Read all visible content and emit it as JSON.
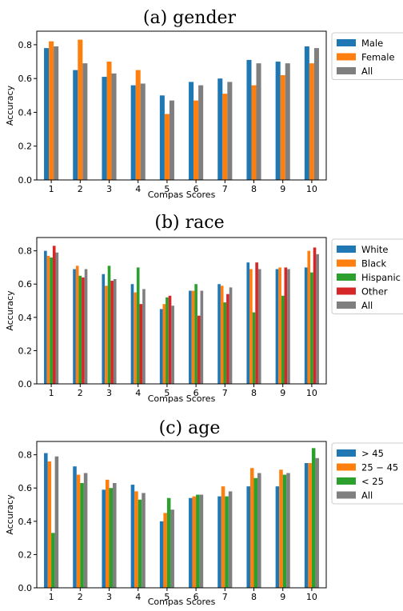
{
  "chart_data": [
    {
      "type": "bar",
      "title": "(a) gender",
      "xlabel": "Compas Scores",
      "ylabel": "Accuracy",
      "categories": [
        "1",
        "2",
        "3",
        "4",
        "5",
        "6",
        "7",
        "8",
        "9",
        "10"
      ],
      "ylim": [
        0,
        0.88
      ],
      "yticks": [
        "0.0",
        "0.2",
        "0.4",
        "0.6",
        "0.8"
      ],
      "legend_position": "right",
      "series": [
        {
          "name": "Male",
          "color": "#1f77b4",
          "values": [
            0.78,
            0.65,
            0.61,
            0.56,
            0.5,
            0.58,
            0.6,
            0.71,
            0.7,
            0.79
          ]
        },
        {
          "name": "Female",
          "color": "#ff7f0e",
          "values": [
            0.82,
            0.83,
            0.7,
            0.65,
            0.39,
            0.47,
            0.51,
            0.56,
            0.62,
            0.69
          ]
        },
        {
          "name": "All",
          "color": "#7f7f7f",
          "values": [
            0.79,
            0.69,
            0.63,
            0.57,
            0.47,
            0.56,
            0.58,
            0.69,
            0.69,
            0.78
          ]
        }
      ]
    },
    {
      "type": "bar",
      "title": "(b) race",
      "xlabel": "Compas Scores",
      "ylabel": "Accuracy",
      "categories": [
        "1",
        "2",
        "3",
        "4",
        "5",
        "6",
        "7",
        "8",
        "9",
        "10"
      ],
      "ylim": [
        0,
        0.88
      ],
      "yticks": [
        "0.0",
        "0.2",
        "0.4",
        "0.6",
        "0.8"
      ],
      "legend_position": "right",
      "series": [
        {
          "name": "White",
          "color": "#1f77b4",
          "values": [
            0.8,
            0.69,
            0.66,
            0.6,
            0.45,
            0.56,
            0.6,
            0.73,
            0.69,
            0.7
          ]
        },
        {
          "name": "Black",
          "color": "#ff7f0e",
          "values": [
            0.77,
            0.71,
            0.59,
            0.55,
            0.48,
            0.56,
            0.59,
            0.69,
            0.7,
            0.8
          ]
        },
        {
          "name": "Hispanic",
          "color": "#2ca02c",
          "values": [
            0.76,
            0.65,
            0.71,
            0.7,
            0.52,
            0.6,
            0.49,
            0.43,
            0.53,
            0.67
          ]
        },
        {
          "name": "Other",
          "color": "#d62728",
          "values": [
            0.83,
            0.64,
            0.62,
            0.48,
            0.53,
            0.41,
            0.54,
            0.73,
            0.7,
            0.82
          ]
        },
        {
          "name": "All",
          "color": "#7f7f7f",
          "values": [
            0.79,
            0.69,
            0.63,
            0.57,
            0.47,
            0.56,
            0.58,
            0.69,
            0.69,
            0.78
          ]
        }
      ]
    },
    {
      "type": "bar",
      "title": "(c) age",
      "xlabel": "Compas Scores",
      "ylabel": "Accuracy",
      "categories": [
        "1",
        "2",
        "3",
        "4",
        "5",
        "6",
        "7",
        "8",
        "9",
        "10"
      ],
      "ylim": [
        0,
        0.88
      ],
      "yticks": [
        "0.0",
        "0.2",
        "0.4",
        "0.6",
        "0.8"
      ],
      "legend_position": "right",
      "series": [
        {
          "name": "> 45",
          "color": "#1f77b4",
          "values": [
            0.81,
            0.73,
            0.59,
            0.62,
            0.4,
            0.54,
            0.55,
            0.61,
            0.61,
            0.75
          ]
        },
        {
          "name": "25 − 45",
          "color": "#ff7f0e",
          "values": [
            0.76,
            0.68,
            0.65,
            0.58,
            0.45,
            0.55,
            0.61,
            0.72,
            0.71,
            0.75
          ]
        },
        {
          "name": "< 25",
          "color": "#2ca02c",
          "values": [
            0.33,
            0.63,
            0.6,
            0.53,
            0.54,
            0.56,
            0.55,
            0.66,
            0.68,
            0.84
          ]
        },
        {
          "name": "All",
          "color": "#7f7f7f",
          "values": [
            0.79,
            0.69,
            0.63,
            0.57,
            0.47,
            0.56,
            0.58,
            0.69,
            0.69,
            0.78
          ]
        }
      ]
    }
  ]
}
